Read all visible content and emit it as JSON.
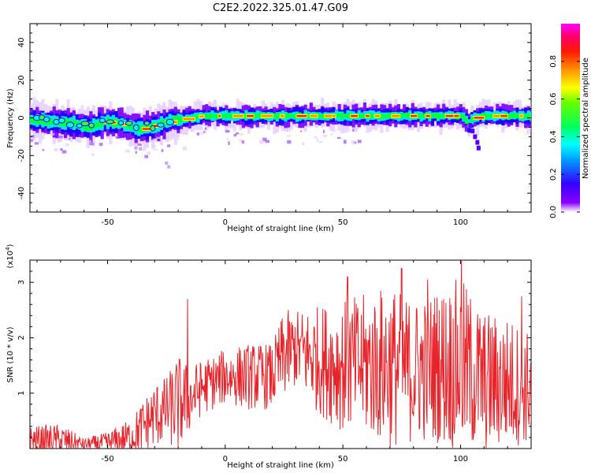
{
  "page": {
    "title": "C2E2.2022.325.01.47.G09"
  },
  "chart_data": [
    {
      "type": "heatmap",
      "title": "C2E2.2022.325.01.47.G09",
      "xlabel": "Height of straight line (km)",
      "ylabel": "Frequency (Hz)",
      "xlim": [
        -83,
        130
      ],
      "ylim": [
        -50,
        50
      ],
      "x_ticks": [
        -50,
        0,
        50,
        100
      ],
      "y_ticks": [
        -40,
        -20,
        0,
        20,
        40
      ],
      "x_tick_labels": [
        "-50",
        "0",
        "50",
        "100"
      ],
      "y_tick_labels": [
        "-40",
        "-20",
        "0",
        "20",
        "40"
      ],
      "colorbar": {
        "label": "Normalized spectral amplitude",
        "range": [
          0,
          1
        ],
        "ticks": [
          0.0,
          0.2,
          0.4,
          0.6,
          0.8
        ],
        "tick_labels": [
          "0.0",
          "0.2",
          "0.4",
          "0.6",
          "0.8"
        ],
        "colors": [
          "#ffffff",
          "#7a00ff",
          "#0000ff",
          "#00ffff",
          "#00ff00",
          "#ffff00",
          "#ff8000",
          "#ff0000",
          "#ff00ff"
        ]
      },
      "ridge": {
        "description_free": true,
        "x": [
          -83,
          -75,
          -65,
          -58,
          -52,
          -45,
          -40,
          -35,
          -30,
          -25,
          -20,
          -15,
          -10,
          -5,
          0,
          20,
          40,
          60,
          80,
          100,
          103,
          105,
          110,
          130
        ],
        "y": [
          -1,
          -2,
          -3,
          -5,
          -2,
          -3,
          -5,
          -6,
          -4,
          -2,
          -1,
          0,
          1,
          1,
          1,
          1,
          1,
          1,
          1,
          1,
          -3,
          0,
          1,
          1
        ]
      }
    },
    {
      "type": "line",
      "xlabel": "Height of straight line (km)",
      "ylabel": "SNR (10 * v/v)",
      "y_multiplier": "(x10",
      "y_multiplier_exp": "4",
      "y_multiplier_close": ")",
      "xlim": [
        -83,
        130
      ],
      "ylim": [
        0,
        3.4
      ],
      "x_ticks": [
        -50,
        0,
        50,
        100
      ],
      "y_ticks": [
        1,
        2,
        3
      ],
      "x_tick_labels": [
        "-50",
        "0",
        "50",
        "100"
      ],
      "y_tick_labels": [
        "1",
        "2",
        "3"
      ],
      "color": "#e8242a",
      "envelope": {
        "x": [
          -83,
          -70,
          -60,
          -50,
          -40,
          -30,
          -25,
          -20,
          -15,
          -10,
          -5,
          0,
          10,
          20,
          25,
          30,
          40,
          50,
          60,
          70,
          80,
          90,
          100,
          110,
          120,
          130
        ],
        "base": [
          0.15,
          0.15,
          0.08,
          0.1,
          0.2,
          0.6,
          0.7,
          0.8,
          0.9,
          1.1,
          1.2,
          1.3,
          1.3,
          1.3,
          1.7,
          1.8,
          1.6,
          1.5,
          1.5,
          1.5,
          1.4,
          1.5,
          1.5,
          1.2,
          1.2,
          1.1
        ],
        "amp": [
          0.25,
          0.3,
          0.1,
          0.2,
          0.35,
          0.6,
          0.6,
          0.9,
          0.6,
          0.5,
          0.5,
          0.5,
          0.6,
          0.6,
          0.8,
          0.7,
          1.0,
          1.2,
          1.3,
          1.5,
          1.3,
          1.4,
          1.6,
          1.3,
          1.2,
          1.0
        ]
      },
      "spikes": [
        {
          "x": -16,
          "y": 2.7
        },
        {
          "x": 75,
          "y": 3.25
        },
        {
          "x": 100.5,
          "y": 3.4
        },
        {
          "x": 86,
          "y": 3.05
        },
        {
          "x": 126,
          "y": 2.75
        },
        {
          "x": 52,
          "y": 3.1
        }
      ]
    }
  ]
}
